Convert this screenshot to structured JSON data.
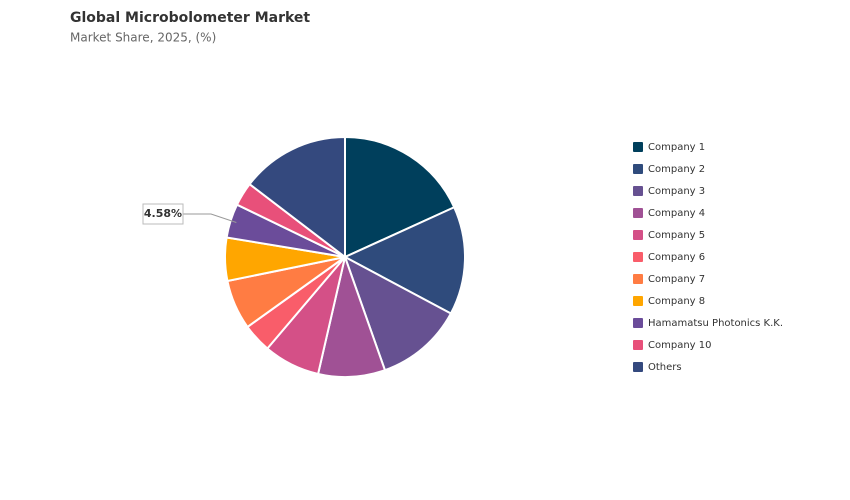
{
  "chart_data": {
    "type": "pie",
    "title": "Global Microbolometer Market",
    "subtitle": "Market Share, 2025, (%)",
    "categories": [
      "Company 1",
      "Company 2",
      "Company 3",
      "Company 4",
      "Company 5",
      "Company 6",
      "Company 7",
      "Company 8",
      "Hamamatsu Photonics K.K.",
      "Company 10",
      "Others"
    ],
    "values": [
      18.2,
      14.6,
      11.8,
      9.0,
      7.6,
      3.9,
      6.7,
      5.8,
      4.58,
      3.2,
      14.62
    ],
    "value_labels": [
      null,
      null,
      null,
      null,
      null,
      null,
      null,
      null,
      "4.58%",
      null,
      null
    ],
    "colors": [
      "#003f5c",
      "#2f4b7c",
      "#665191",
      "#a05195",
      "#d45087",
      "#f95d6a",
      "#ff7c43",
      "#ffa600",
      "#6b4c9a",
      "#e8507a",
      "#34497e"
    ],
    "legend": "right"
  }
}
